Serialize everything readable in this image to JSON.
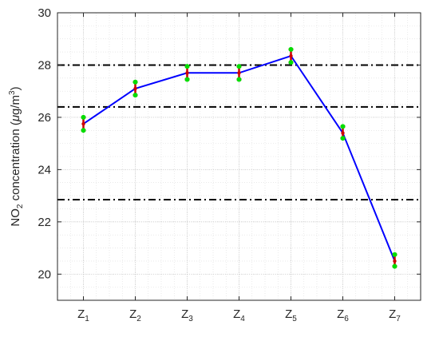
{
  "chart_data": {
    "type": "line",
    "categories": [
      {
        "base": "Z",
        "sub": "1"
      },
      {
        "base": "Z",
        "sub": "2"
      },
      {
        "base": "Z",
        "sub": "3"
      },
      {
        "base": "Z",
        "sub": "4"
      },
      {
        "base": "Z",
        "sub": "5"
      },
      {
        "base": "Z",
        "sub": "6"
      },
      {
        "base": "Z",
        "sub": "7"
      }
    ],
    "series": [
      {
        "values": [
          25.75,
          27.1,
          27.7,
          27.7,
          28.35,
          25.4,
          20.5
        ],
        "error_low": [
          25.5,
          26.85,
          27.45,
          27.45,
          28.1,
          25.2,
          20.3
        ],
        "error_high": [
          26.0,
          27.35,
          27.95,
          27.95,
          28.6,
          25.65,
          20.75
        ],
        "color": "#0000ff",
        "errorbar_color": "#cc0000",
        "cap_marker_color": "#00dd00"
      }
    ],
    "reference_lines": [
      {
        "y": 28.0,
        "style": "dash-dot",
        "color": "#000000"
      },
      {
        "y": 26.4,
        "style": "dash-dot",
        "color": "#000000"
      },
      {
        "y": 22.85,
        "style": "dash-dot",
        "color": "#000000"
      }
    ],
    "ylabel": {
      "pre": "NO",
      "sub": "2",
      "mid": " concentration (",
      "mu": "μ",
      "unit": "g/m",
      "sup": "3",
      "post": ")"
    },
    "ylim": [
      19,
      30
    ],
    "yticks": [
      20,
      22,
      24,
      26,
      28,
      30
    ],
    "grid": true,
    "minor_grid": true
  }
}
